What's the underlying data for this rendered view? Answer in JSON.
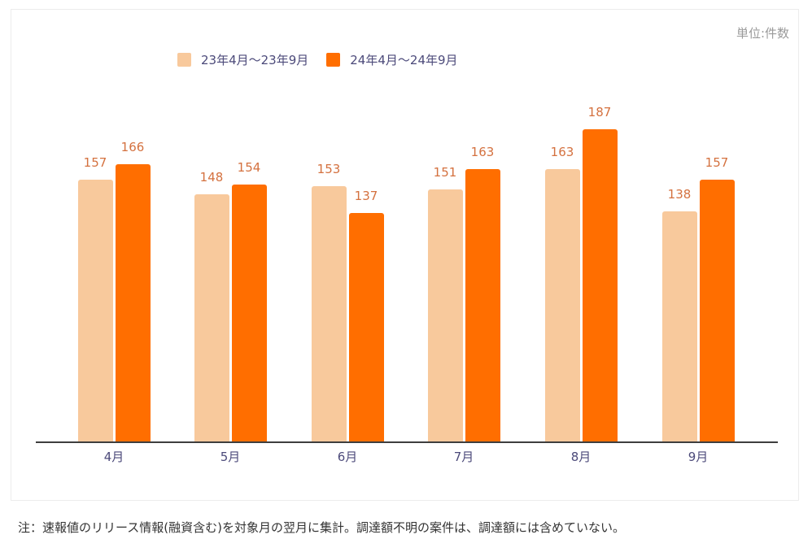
{
  "chart_data": {
    "type": "bar",
    "title": "",
    "xlabel": "",
    "ylabel": "",
    "unit_label": "単位:件数",
    "categories": [
      "4月",
      "5月",
      "6月",
      "7月",
      "8月",
      "9月"
    ],
    "series": [
      {
        "name": "23年4月〜23年9月",
        "color": "#f8c99c",
        "values": [
          157,
          148,
          153,
          151,
          163,
          138
        ]
      },
      {
        "name": "24年4月〜24年9月",
        "color": "#ff6e00",
        "values": [
          166,
          154,
          137,
          163,
          187,
          157
        ]
      }
    ],
    "ylim": [
      0,
      200
    ],
    "grid": false,
    "legend_position": "top",
    "data_labels": true
  },
  "note": "注：速報値のリリース情報(融資含む)を対象月の翌月に集計。調達額不明の案件は、調達額には含めていない。",
  "value_label_color": "#d4713f",
  "axis_label_color": "#4c4a7a"
}
